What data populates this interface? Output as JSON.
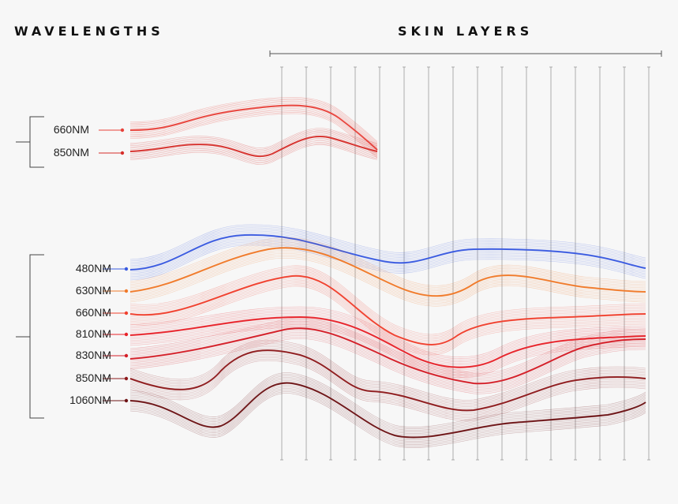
{
  "headings": {
    "wavelengths": "WAVELENGTHS",
    "skin_layers": "SKIN LAYERS"
  },
  "groups": [
    {
      "name": "top",
      "wavelengths": [
        {
          "label": "660NM",
          "color": "#e8413a"
        },
        {
          "label": "850NM",
          "color": "#d62e2a"
        }
      ]
    },
    {
      "name": "bottom",
      "wavelengths": [
        {
          "label": "480NM",
          "color": "#3a5be0"
        },
        {
          "label": "630NM",
          "color": "#f07a2a"
        },
        {
          "label": "660NM",
          "color": "#f0402e"
        },
        {
          "label": "810NM",
          "color": "#e8232a"
        },
        {
          "label": "830NM",
          "color": "#d41f28"
        },
        {
          "label": "850NM",
          "color": "#8e1b1e"
        },
        {
          "label": "1060NM",
          "color": "#6e1416"
        }
      ]
    }
  ],
  "skin_layer_count": 16,
  "colors": {
    "background": "#f7f7f7",
    "grid": "#9a9a9a",
    "text": "#222222"
  }
}
